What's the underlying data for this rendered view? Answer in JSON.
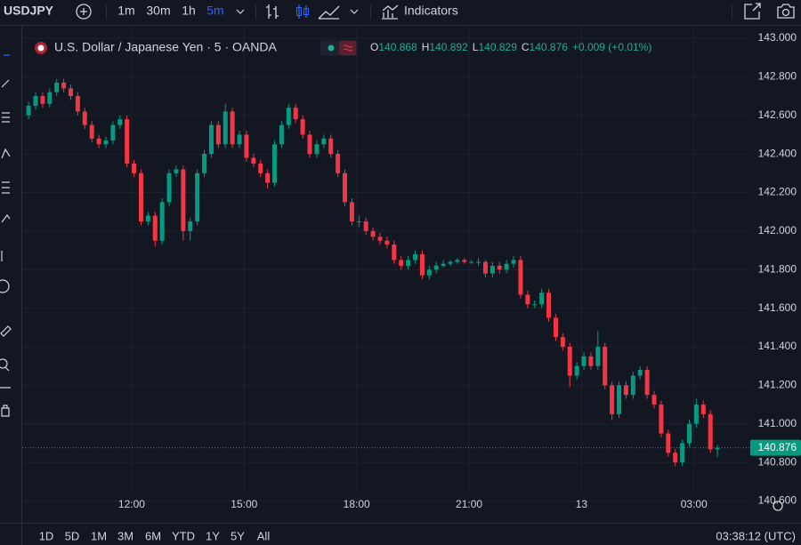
{
  "toolbar": {
    "symbol": "USDJPY",
    "intervals": [
      "1m",
      "30m",
      "1h",
      "5m"
    ],
    "active_interval": 3,
    "indicators": "Indicators"
  },
  "legend": {
    "title": "U.S. Dollar / Japanese Yen · 5 · OANDA",
    "labels": [
      "O",
      "H",
      "L",
      "C"
    ],
    "change": "+0.009 (+0.01%)"
  },
  "chart_data": {
    "type": "candlestick",
    "up_color": "#089981",
    "down_color": "#f23645",
    "grid": true,
    "xlim": [
      9.2,
      28.43
    ],
    "ylim": [
      140.51,
      143.06
    ],
    "yticks": [
      {
        "value": 143,
        "label": "143.000"
      },
      {
        "value": 142.8,
        "label": "142.800"
      },
      {
        "value": 142.6,
        "label": "142.600"
      },
      {
        "value": 142.4,
        "label": "142.400"
      },
      {
        "value": 142.2,
        "label": "142.200"
      },
      {
        "value": 142,
        "label": "142.000"
      },
      {
        "value": 141.8,
        "label": "141.800"
      },
      {
        "value": 141.6,
        "label": "141.600"
      },
      {
        "value": 141.4,
        "label": "141.400"
      },
      {
        "value": 141.2,
        "label": "141.200"
      },
      {
        "value": 141,
        "label": "141.000"
      },
      {
        "value": 140.8,
        "label": "140.800"
      },
      {
        "value": 140.6,
        "label": "140.600"
      }
    ],
    "xticks": [
      {
        "value": 12,
        "label": "12:00"
      },
      {
        "value": 15,
        "label": "15:00"
      },
      {
        "value": 18,
        "label": "18:00"
      },
      {
        "value": 21,
        "label": "21:00"
      },
      {
        "value": 24,
        "label": "13"
      },
      {
        "value": 27,
        "label": "03:00"
      }
    ],
    "x": [
      9.25,
      9.4375,
      9.625,
      9.8125,
      10,
      10.1875,
      10.375,
      10.5625,
      10.75,
      10.9375,
      11.125,
      11.3125,
      11.5,
      11.6875,
      11.875,
      12.0625,
      12.25,
      12.4375,
      12.625,
      12.8125,
      13,
      13.1875,
      13.375,
      13.5625,
      13.75,
      13.9375,
      14.125,
      14.3125,
      14.5,
      14.6875,
      14.875,
      15.0625,
      15.25,
      15.4375,
      15.625,
      15.8125,
      16,
      16.1875,
      16.375,
      16.5625,
      16.75,
      16.9375,
      17.125,
      17.3125,
      17.5,
      17.6875,
      17.875,
      18.0625,
      18.25,
      18.4375,
      18.625,
      18.8125,
      19,
      19.1875,
      19.375,
      19.5625,
      19.75,
      19.9375,
      20.125,
      20.3125,
      20.5,
      20.6875,
      20.875,
      21.0625,
      21.25,
      21.4375,
      21.625,
      21.8125,
      22,
      22.1875,
      22.375,
      22.5625,
      22.75,
      22.9375,
      23.125,
      23.3125,
      23.5,
      23.6875,
      23.875,
      24.0625,
      24.25,
      24.4375,
      24.625,
      24.8125,
      25,
      25.1875,
      25.375,
      25.5625,
      25.75,
      25.9375,
      26.125,
      26.3125,
      26.5,
      26.6875,
      26.875,
      27.0625,
      27.25,
      27.4375,
      27.625
    ],
    "candles": [
      [
        142.6,
        142.67,
        142.58,
        142.65
      ],
      [
        142.65,
        142.72,
        142.63,
        142.7
      ],
      [
        142.7,
        142.72,
        142.64,
        142.66
      ],
      [
        142.66,
        142.74,
        142.64,
        142.72
      ],
      [
        142.72,
        142.79,
        142.7,
        142.77
      ],
      [
        142.77,
        142.79,
        142.72,
        142.74
      ],
      [
        142.74,
        142.76,
        142.68,
        142.7
      ],
      [
        142.7,
        142.72,
        142.6,
        142.62
      ],
      [
        142.62,
        142.64,
        142.53,
        142.55
      ],
      [
        142.55,
        142.57,
        142.46,
        142.48
      ],
      [
        142.48,
        142.5,
        142.43,
        142.45
      ],
      [
        142.45,
        142.49,
        142.43,
        142.47
      ],
      [
        142.47,
        142.57,
        142.45,
        142.55
      ],
      [
        142.55,
        142.6,
        142.53,
        142.58
      ],
      [
        142.58,
        142.6,
        142.33,
        142.35
      ],
      [
        142.35,
        142.37,
        142.28,
        142.3
      ],
      [
        142.3,
        142.32,
        142.03,
        142.05
      ],
      [
        142.05,
        142.1,
        142.03,
        142.08
      ],
      [
        142.08,
        142.1,
        141.92,
        141.95
      ],
      [
        141.95,
        142.17,
        141.93,
        142.15
      ],
      [
        142.15,
        142.32,
        142.13,
        142.3
      ],
      [
        142.3,
        142.34,
        142.28,
        142.32
      ],
      [
        142.32,
        142.34,
        141.95,
        142.0
      ],
      [
        142.0,
        142.07,
        141.95,
        142.05
      ],
      [
        142.05,
        142.32,
        142.03,
        142.3
      ],
      [
        142.3,
        142.42,
        142.28,
        142.4
      ],
      [
        142.4,
        142.57,
        142.38,
        142.55
      ],
      [
        142.55,
        142.57,
        142.43,
        142.45
      ],
      [
        142.45,
        142.66,
        142.43,
        142.62
      ],
      [
        142.62,
        142.64,
        142.43,
        142.45
      ],
      [
        142.45,
        142.52,
        142.43,
        142.5
      ],
      [
        142.5,
        142.52,
        142.36,
        142.38
      ],
      [
        142.38,
        142.4,
        142.33,
        142.35
      ],
      [
        142.35,
        142.37,
        142.28,
        142.3
      ],
      [
        142.3,
        142.32,
        142.22,
        142.25
      ],
      [
        142.25,
        142.47,
        142.23,
        142.45
      ],
      [
        142.45,
        142.57,
        142.43,
        142.55
      ],
      [
        142.55,
        142.66,
        142.53,
        142.64
      ],
      [
        142.64,
        142.66,
        142.56,
        142.58
      ],
      [
        142.58,
        142.6,
        142.48,
        142.5
      ],
      [
        142.5,
        142.52,
        142.38,
        142.4
      ],
      [
        142.4,
        142.47,
        142.38,
        142.45
      ],
      [
        142.45,
        142.5,
        142.43,
        142.48
      ],
      [
        142.48,
        142.5,
        142.38,
        142.4
      ],
      [
        142.4,
        142.42,
        142.28,
        142.3
      ],
      [
        142.3,
        142.32,
        142.13,
        142.15
      ],
      [
        142.15,
        142.17,
        142.03,
        142.05
      ],
      [
        142.05,
        142.08,
        142.02,
        142.05
      ],
      [
        142.05,
        142.07,
        141.98,
        142.0
      ],
      [
        142.0,
        142.02,
        141.95,
        141.97
      ],
      [
        141.97,
        141.99,
        141.93,
        141.95
      ],
      [
        141.95,
        141.97,
        141.91,
        141.93
      ],
      [
        141.93,
        141.95,
        141.83,
        141.85
      ],
      [
        141.85,
        141.87,
        141.8,
        141.82
      ],
      [
        141.82,
        141.87,
        141.8,
        141.85
      ],
      [
        141.85,
        141.9,
        141.83,
        141.88
      ],
      [
        141.88,
        141.9,
        141.75,
        141.77
      ],
      [
        141.77,
        141.82,
        141.75,
        141.8
      ],
      [
        141.8,
        141.84,
        141.78,
        141.82
      ],
      [
        141.82,
        141.85,
        141.81,
        141.83
      ],
      [
        141.83,
        141.85,
        141.82,
        141.84
      ],
      [
        141.84,
        141.86,
        141.83,
        141.85
      ],
      [
        141.85,
        141.86,
        141.83,
        141.84
      ],
      [
        141.84,
        141.85,
        141.83,
        141.84
      ],
      [
        141.84,
        141.86,
        141.82,
        141.84
      ],
      [
        141.84,
        141.85,
        141.76,
        141.78
      ],
      [
        141.78,
        141.84,
        141.76,
        141.82
      ],
      [
        141.82,
        141.84,
        141.78,
        141.8
      ],
      [
        141.8,
        141.85,
        141.78,
        141.83
      ],
      [
        141.83,
        141.87,
        141.81,
        141.85
      ],
      [
        141.85,
        141.87,
        141.65,
        141.67
      ],
      [
        141.67,
        141.69,
        141.6,
        141.62
      ],
      [
        141.62,
        141.64,
        141.6,
        141.62
      ],
      [
        141.62,
        141.7,
        141.6,
        141.68
      ],
      [
        141.68,
        141.7,
        141.53,
        141.55
      ],
      [
        141.55,
        141.57,
        141.43,
        141.45
      ],
      [
        141.45,
        141.47,
        141.38,
        141.4
      ],
      [
        141.4,
        141.42,
        141.19,
        141.25
      ],
      [
        141.25,
        141.32,
        141.23,
        141.3
      ],
      [
        141.3,
        141.37,
        141.28,
        141.35
      ],
      [
        141.35,
        141.37,
        141.28,
        141.3
      ],
      [
        141.3,
        141.48,
        141.28,
        141.4
      ],
      [
        141.4,
        141.42,
        141.18,
        141.2
      ],
      [
        141.2,
        141.22,
        141.02,
        141.05
      ],
      [
        141.05,
        141.22,
        141.03,
        141.2
      ],
      [
        141.2,
        141.22,
        141.13,
        141.15
      ],
      [
        141.15,
        141.27,
        141.13,
        141.25
      ],
      [
        141.25,
        141.3,
        141.23,
        141.28
      ],
      [
        141.28,
        141.3,
        141.13,
        141.15
      ],
      [
        141.15,
        141.17,
        141.08,
        141.1
      ],
      [
        141.1,
        141.12,
        140.93,
        140.95
      ],
      [
        140.95,
        140.97,
        140.83,
        140.85
      ],
      [
        140.85,
        140.87,
        140.78,
        140.8
      ],
      [
        140.8,
        140.92,
        140.78,
        140.9
      ],
      [
        140.9,
        141.02,
        140.88,
        141.0
      ],
      [
        141.0,
        141.13,
        140.98,
        141.1
      ],
      [
        141.1,
        141.12,
        141.03,
        141.05
      ],
      [
        141.05,
        141.07,
        140.85,
        140.868
      ],
      [
        140.868,
        140.892,
        140.829,
        140.876
      ]
    ]
  },
  "footer": {
    "ranges": [
      "1D",
      "5D",
      "1M",
      "3M",
      "6M",
      "YTD",
      "1Y",
      "5Y",
      "All"
    ],
    "clock": "03:38:12 (UTC)"
  }
}
